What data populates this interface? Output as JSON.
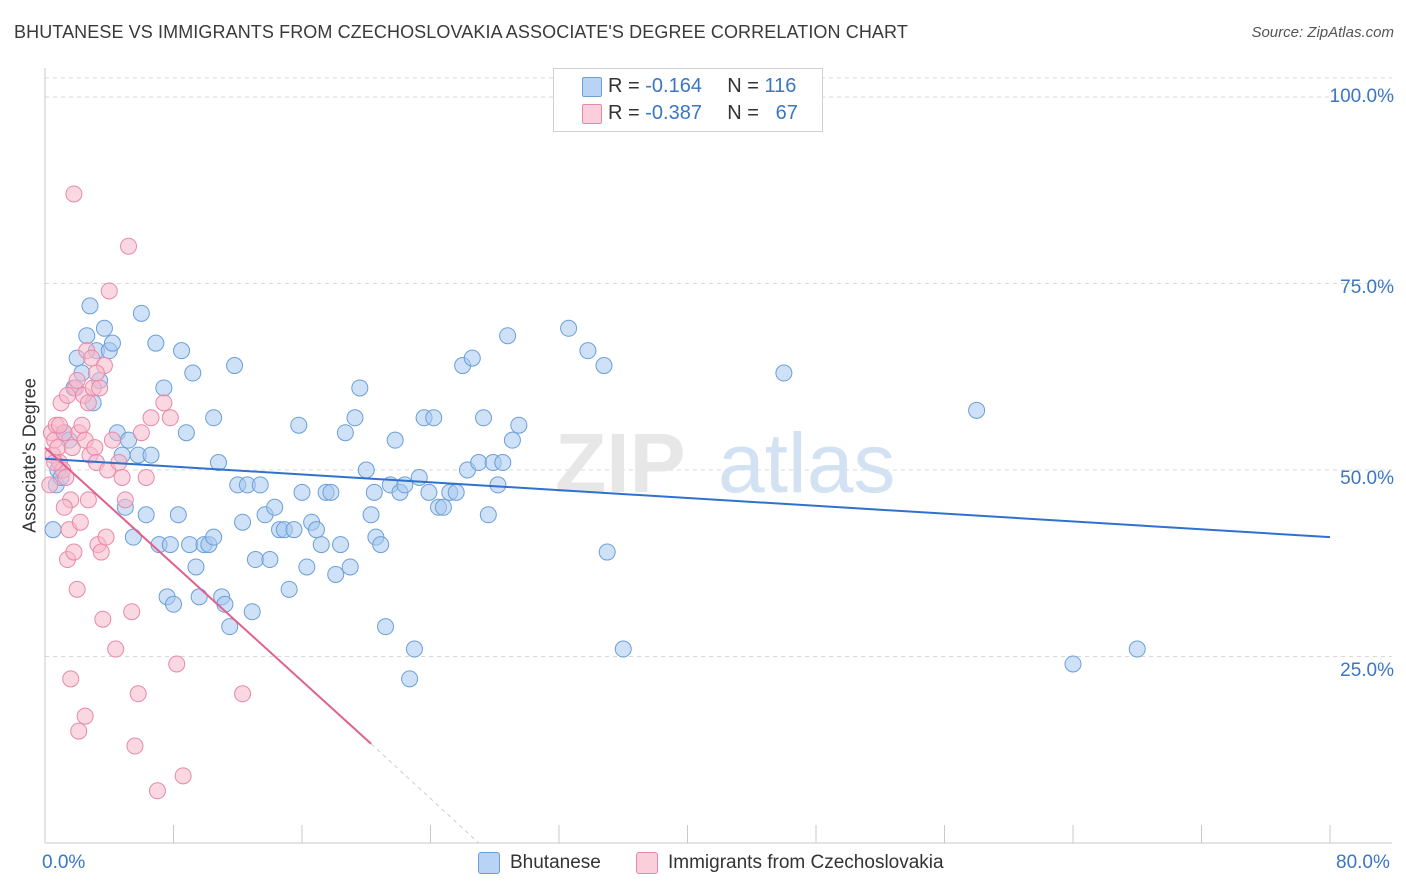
{
  "header": {
    "title": "BHUTANESE VS IMMIGRANTS FROM CZECHOSLOVAKIA ASSOCIATE'S DEGREE CORRELATION CHART",
    "source": "Source: ZipAtlas.com"
  },
  "legend": {
    "series1": {
      "r_label": "R =",
      "r_value": "-0.164",
      "n_label": "N =",
      "n_value": "116"
    },
    "series2": {
      "r_label": "R =",
      "r_value": "-0.387",
      "n_label": "N =",
      "n_value": "67"
    }
  },
  "colors": {
    "blue_fill": "#a8c8f0",
    "blue_stroke": "#6a9fd8",
    "blue_line": "#2f72cc",
    "pink_fill": "#f6b8cb",
    "pink_stroke": "#e888a8",
    "pink_line": "#e0608e",
    "grid": "#d8d8d8",
    "tick_text": "#3a76c4"
  },
  "watermark": {
    "part1": "ZIP",
    "part2": "atlas"
  },
  "chart_data": {
    "type": "scatter",
    "title": "BHUTANESE VS IMMIGRANTS FROM CZECHOSLOVAKIA ASSOCIATE'S DEGREE CORRELATION CHART",
    "xlabel": "",
    "ylabel": "Associate's Degree",
    "xlim": [
      0,
      80
    ],
    "ylim": [
      0,
      100
    ],
    "x_tick_labels": [
      "0.0%",
      "80.0%"
    ],
    "y_tick_labels": [
      "100.0%",
      "75.0%",
      "50.0%",
      "25.0%"
    ],
    "y_ticks": [
      100,
      75,
      50,
      25
    ],
    "grid": true,
    "legend_position": "top-center",
    "series": [
      {
        "name": "Bhutanese",
        "color": "#a8c8f0",
        "trend": {
          "x": [
            0,
            80
          ],
          "y": [
            51.5,
            41.0
          ]
        },
        "points": [
          [
            0.5,
            42
          ],
          [
            0.7,
            48
          ],
          [
            0.8,
            50
          ],
          [
            1.0,
            49
          ],
          [
            1.2,
            55
          ],
          [
            1.5,
            54
          ],
          [
            1.8,
            61
          ],
          [
            2.0,
            65
          ],
          [
            2.3,
            63
          ],
          [
            2.6,
            68
          ],
          [
            2.8,
            72
          ],
          [
            3.0,
            59
          ],
          [
            3.2,
            66
          ],
          [
            3.4,
            62
          ],
          [
            3.7,
            69
          ],
          [
            4.0,
            66
          ],
          [
            4.2,
            67
          ],
          [
            4.5,
            55
          ],
          [
            4.8,
            52
          ],
          [
            5.0,
            45
          ],
          [
            5.2,
            54
          ],
          [
            5.5,
            41
          ],
          [
            5.8,
            52
          ],
          [
            6.0,
            71
          ],
          [
            6.3,
            44
          ],
          [
            6.6,
            52
          ],
          [
            6.9,
            67
          ],
          [
            7.1,
            40
          ],
          [
            7.4,
            61
          ],
          [
            7.6,
            33
          ],
          [
            7.8,
            40
          ],
          [
            8.0,
            32
          ],
          [
            8.3,
            44
          ],
          [
            8.5,
            66
          ],
          [
            8.8,
            55
          ],
          [
            9.0,
            40
          ],
          [
            9.2,
            63
          ],
          [
            9.4,
            37
          ],
          [
            9.6,
            33
          ],
          [
            9.9,
            40
          ],
          [
            10.2,
            40
          ],
          [
            10.5,
            57
          ],
          [
            10.8,
            51
          ],
          [
            11.0,
            33
          ],
          [
            11.2,
            32
          ],
          [
            11.5,
            29
          ],
          [
            11.8,
            64
          ],
          [
            12.0,
            48
          ],
          [
            12.3,
            43
          ],
          [
            12.6,
            48
          ],
          [
            12.9,
            31
          ],
          [
            13.1,
            38
          ],
          [
            13.4,
            48
          ],
          [
            13.7,
            44
          ],
          [
            14.0,
            38
          ],
          [
            14.3,
            45
          ],
          [
            14.6,
            42
          ],
          [
            14.9,
            42
          ],
          [
            15.2,
            34
          ],
          [
            15.5,
            42
          ],
          [
            15.8,
            56
          ],
          [
            16.0,
            47
          ],
          [
            16.3,
            37
          ],
          [
            16.6,
            43
          ],
          [
            16.9,
            42
          ],
          [
            17.2,
            40
          ],
          [
            17.5,
            47
          ],
          [
            17.8,
            47
          ],
          [
            18.1,
            36
          ],
          [
            18.4,
            40
          ],
          [
            18.7,
            55
          ],
          [
            19.0,
            37
          ],
          [
            19.3,
            57
          ],
          [
            19.6,
            61
          ],
          [
            20.0,
            50
          ],
          [
            20.3,
            44
          ],
          [
            20.6,
            41
          ],
          [
            20.9,
            40
          ],
          [
            21.2,
            29
          ],
          [
            21.5,
            48
          ],
          [
            21.8,
            54
          ],
          [
            22.1,
            47
          ],
          [
            22.4,
            48
          ],
          [
            22.7,
            22
          ],
          [
            23.0,
            26
          ],
          [
            23.3,
            49
          ],
          [
            23.6,
            57
          ],
          [
            23.9,
            47
          ],
          [
            24.2,
            57
          ],
          [
            24.5,
            45
          ],
          [
            24.8,
            45
          ],
          [
            25.2,
            47
          ],
          [
            25.6,
            47
          ],
          [
            26.0,
            64
          ],
          [
            26.3,
            50
          ],
          [
            26.6,
            65
          ],
          [
            27.0,
            51
          ],
          [
            27.3,
            57
          ],
          [
            27.6,
            44
          ],
          [
            27.9,
            51
          ],
          [
            28.2,
            48
          ],
          [
            28.5,
            51
          ],
          [
            28.8,
            68
          ],
          [
            29.1,
            54
          ],
          [
            29.5,
            56
          ],
          [
            32.6,
            69
          ],
          [
            33.8,
            66
          ],
          [
            34.8,
            64
          ],
          [
            35.0,
            39
          ],
          [
            36.0,
            26
          ],
          [
            46.0,
            63
          ],
          [
            58.0,
            58
          ],
          [
            64.0,
            24
          ],
          [
            68.0,
            26
          ],
          [
            10.5,
            41
          ],
          [
            20.5,
            47
          ]
        ]
      },
      {
        "name": "Immigrants from Czechoslovakia",
        "color": "#f6b8cb",
        "trend": {
          "x": [
            0,
            20.3
          ],
          "y": [
            53.0,
            13.3
          ]
        },
        "trend_dashed_extension": {
          "x": [
            20.3,
            27
          ],
          "y": [
            13.3,
            0
          ]
        },
        "points": [
          [
            0.3,
            48
          ],
          [
            0.4,
            55
          ],
          [
            0.5,
            52
          ],
          [
            0.6,
            54
          ],
          [
            0.7,
            56
          ],
          [
            0.8,
            53
          ],
          [
            0.9,
            51
          ],
          [
            1.0,
            59
          ],
          [
            1.1,
            50
          ],
          [
            1.2,
            55
          ],
          [
            1.3,
            49
          ],
          [
            1.4,
            38
          ],
          [
            1.5,
            42
          ],
          [
            1.6,
            46
          ],
          [
            1.7,
            53
          ],
          [
            1.8,
            39
          ],
          [
            1.9,
            61
          ],
          [
            2.0,
            34
          ],
          [
            2.1,
            55
          ],
          [
            2.2,
            43
          ],
          [
            2.3,
            56
          ],
          [
            2.4,
            60
          ],
          [
            2.5,
            54
          ],
          [
            2.6,
            66
          ],
          [
            2.7,
            46
          ],
          [
            2.8,
            52
          ],
          [
            2.9,
            65
          ],
          [
            3.0,
            61
          ],
          [
            3.1,
            53
          ],
          [
            3.2,
            51
          ],
          [
            3.3,
            40
          ],
          [
            3.4,
            61
          ],
          [
            3.5,
            39
          ],
          [
            3.6,
            30
          ],
          [
            3.7,
            64
          ],
          [
            3.8,
            41
          ],
          [
            3.9,
            50
          ],
          [
            4.0,
            74
          ],
          [
            4.2,
            54
          ],
          [
            4.4,
            26
          ],
          [
            4.6,
            51
          ],
          [
            4.8,
            49
          ],
          [
            5.0,
            46
          ],
          [
            5.2,
            80
          ],
          [
            5.4,
            31
          ],
          [
            5.6,
            13
          ],
          [
            5.8,
            20
          ],
          [
            6.0,
            55
          ],
          [
            6.3,
            49
          ],
          [
            6.6,
            57
          ],
          [
            7.0,
            7
          ],
          [
            7.4,
            59
          ],
          [
            7.8,
            57
          ],
          [
            8.2,
            24
          ],
          [
            8.6,
            9
          ],
          [
            12.3,
            20
          ],
          [
            2.5,
            17
          ],
          [
            2.1,
            15
          ],
          [
            1.8,
            87
          ],
          [
            1.6,
            22
          ],
          [
            3.2,
            63
          ],
          [
            0.9,
            56
          ],
          [
            1.2,
            45
          ],
          [
            2.7,
            59
          ],
          [
            1.4,
            60
          ],
          [
            0.6,
            51
          ],
          [
            2.0,
            62
          ]
        ]
      }
    ]
  },
  "bottom_legend": {
    "item1": "Bhutanese",
    "item2": "Immigrants from Czechoslovakia"
  },
  "axes": {
    "ylabel": "Associate's Degree",
    "x_min_label": "0.0%",
    "x_max_label": "80.0%",
    "y_labels": [
      "100.0%",
      "75.0%",
      "50.0%",
      "25.0%"
    ]
  }
}
